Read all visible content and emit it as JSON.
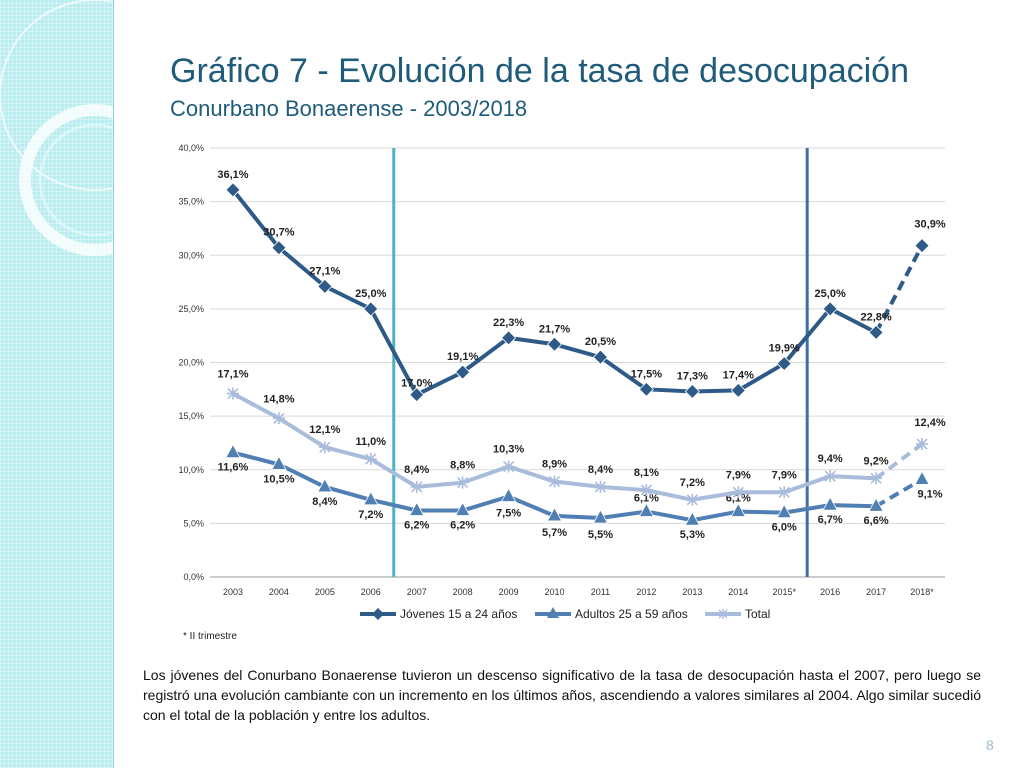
{
  "slide": {
    "title": "Gráfico 7 - Evolución de la tasa de desocupación",
    "subtitle": "Conurbano Bonaerense - 2003/2018",
    "footnote": "* II trimestre",
    "body": "Los jóvenes del Conurbano Bonaerense tuvieron un descenso significativo de la tasa de desocupación hasta el 2007, pero luego se registró una evolución cambiante con un incremento en los últimos años, ascendiendo a valores similares al 2004. Algo similar sucedió con el total de la población y entre los adultos.",
    "page_number": "8"
  },
  "colors": {
    "title": "#1f5b7a",
    "sidebar": "#b9ecef",
    "jovenes": "#2e5a88",
    "adultos": "#4f7fb3",
    "total": "#a9bcdb",
    "vline_left": "#4fb3c8",
    "vline_right": "#3f6fa6"
  },
  "chart_data": {
    "type": "line",
    "categories": [
      "2003",
      "2004",
      "2005",
      "2006",
      "2007",
      "2008",
      "2009",
      "2010",
      "2011",
      "2012",
      "2013",
      "2014",
      "2015*",
      "2016",
      "2017",
      "2018*"
    ],
    "ylim": [
      0,
      40
    ],
    "yticks": [
      0,
      5,
      10,
      15,
      20,
      25,
      30,
      35,
      40
    ],
    "ytick_labels": [
      "0,0%",
      "5,0%",
      "10,0%",
      "15,0%",
      "20,0%",
      "25,0%",
      "30,0%",
      "35,0%",
      "40,0%"
    ],
    "vertical_lines_after": [
      "2006",
      "2015*"
    ],
    "dashed_last_segment": true,
    "series": [
      {
        "name": "Jóvenes 15 a 24 años",
        "marker": "diamond",
        "values": [
          36.1,
          30.7,
          27.1,
          25.0,
          17.0,
          19.1,
          22.3,
          21.7,
          20.5,
          17.5,
          17.3,
          17.4,
          19.9,
          25.0,
          22.8,
          30.9
        ],
        "labels": [
          "36,1%",
          "30,7%",
          "27,1%",
          "25,0%",
          "17,0%",
          "19,1%",
          "22,3%",
          "21,7%",
          "20,5%",
          "17,5%",
          "17,3%",
          "17,4%",
          "19,9%",
          "25,0%",
          "22,8%",
          "30,9%"
        ]
      },
      {
        "name": "Adultos 25 a 59 años",
        "marker": "triangle",
        "values": [
          11.6,
          10.5,
          8.4,
          7.2,
          6.2,
          6.2,
          7.5,
          5.7,
          5.5,
          6.1,
          5.3,
          6.1,
          6.0,
          6.7,
          6.6,
          9.1
        ],
        "labels": [
          "11,6%",
          "10,5%",
          "8,4%",
          "7,2%",
          "6,2%",
          "6,2%",
          "7,5%",
          "5,7%",
          "5,5%",
          "6,1%",
          "5,3%",
          "6,1%",
          "6,0%",
          "6,7%",
          "6,6%",
          "9,1%"
        ]
      },
      {
        "name": "Total",
        "marker": "star",
        "values": [
          17.1,
          14.8,
          12.1,
          11.0,
          8.4,
          8.8,
          10.3,
          8.9,
          8.4,
          8.1,
          7.2,
          7.9,
          7.9,
          9.4,
          9.2,
          12.4
        ],
        "labels": [
          "17,1%",
          "14,8%",
          "12,1%",
          "11,0%",
          "8,4%",
          "8,8%",
          "10,3%",
          "8,9%",
          "8,4%",
          "8,1%",
          "7,2%",
          "7,9%",
          "7,9%",
          "9,4%",
          "9,2%",
          "12,4%"
        ]
      }
    ]
  }
}
